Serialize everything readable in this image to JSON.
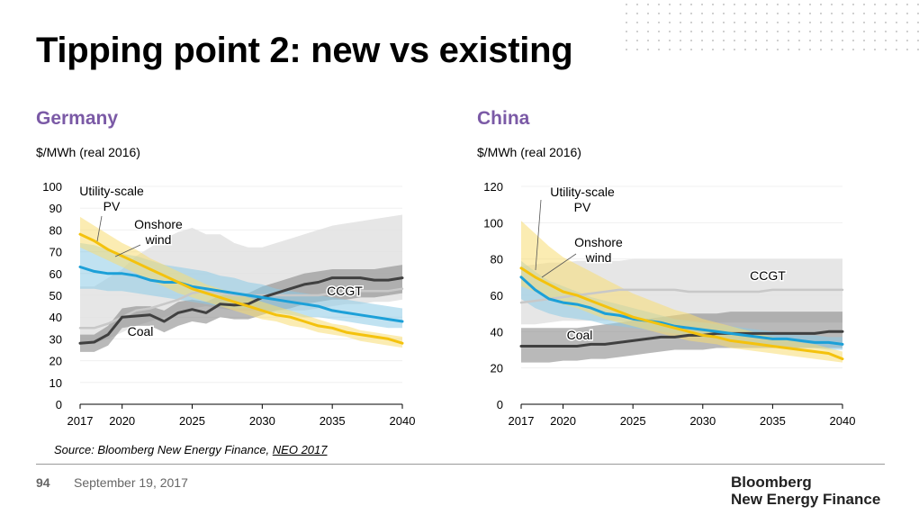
{
  "title": "Tipping point 2: new vs existing",
  "source": {
    "prefix": "Source: Bloomberg New Energy Finance, ",
    "link": "NEO 2017"
  },
  "footer": {
    "page": "94",
    "date": "September 19, 2017",
    "brand_line1": "Bloomberg",
    "brand_line2": "New Energy Finance"
  },
  "colors": {
    "pv": "#f4c20d",
    "wind": "#1ca0d8",
    "coal": "#404040",
    "ccgt": "#c8c8c8",
    "accent": "#7b5aa6"
  },
  "chart_data": [
    {
      "type": "line",
      "title": "Germany",
      "ylabel": "$/MWh (real 2016)",
      "x_ticks": [
        2017,
        2020,
        2025,
        2030,
        2035,
        2040
      ],
      "y_ticks": [
        0,
        10,
        20,
        30,
        40,
        50,
        60,
        70,
        80,
        90,
        100
      ],
      "xlim": [
        2017,
        2040
      ],
      "ylim": [
        0,
        100
      ],
      "x": [
        2017,
        2018,
        2019,
        2020,
        2021,
        2022,
        2023,
        2024,
        2025,
        2026,
        2027,
        2028,
        2029,
        2030,
        2031,
        2032,
        2033,
        2034,
        2035,
        2036,
        2037,
        2038,
        2039,
        2040
      ],
      "series": [
        {
          "name": "CCGT",
          "key": "ccgt",
          "label_lines": [
            "CCGT"
          ],
          "values": [
            35,
            35,
            37,
            40,
            43,
            44,
            46,
            48,
            51,
            52,
            51,
            50,
            50,
            50,
            50,
            50,
            50,
            50,
            51,
            51,
            52,
            52,
            52,
            53
          ],
          "low": [
            28,
            28,
            30,
            33,
            36,
            38,
            40,
            42,
            44,
            45,
            44,
            43,
            43,
            43,
            43,
            43,
            43,
            44,
            45,
            46,
            46,
            47,
            47,
            48
          ],
          "high": [
            54,
            54,
            58,
            62,
            68,
            72,
            76,
            79,
            81,
            78,
            78,
            74,
            72,
            72,
            74,
            76,
            78,
            80,
            82,
            83,
            84,
            85,
            86,
            87
          ]
        },
        {
          "name": "Coal",
          "key": "coal",
          "label_lines": [
            "Coal"
          ],
          "values": [
            28,
            28.5,
            32,
            40,
            40.5,
            41,
            38,
            42,
            43.5,
            42,
            46,
            45.5,
            46,
            49,
            51,
            53,
            55,
            56,
            58,
            58,
            58,
            57,
            57,
            58
          ],
          "low": [
            24,
            24,
            27,
            35,
            36,
            36,
            33,
            36,
            38,
            37,
            40,
            39,
            39,
            41,
            43,
            44,
            46,
            47,
            48,
            48,
            49,
            49,
            50,
            51
          ],
          "high": [
            32,
            32,
            36,
            44,
            45,
            45,
            43,
            47,
            48,
            47,
            50,
            50,
            51,
            54,
            56,
            58,
            60,
            61,
            62,
            62,
            62,
            62,
            63,
            64
          ]
        },
        {
          "name": "Onshore wind",
          "key": "wind",
          "label_lines": [
            "Onshore",
            "wind"
          ],
          "values": [
            63,
            61,
            60,
            60,
            59,
            57,
            56,
            56,
            54,
            53,
            52,
            51,
            50,
            49,
            48,
            47,
            46,
            45,
            43,
            42,
            41,
            40,
            39,
            38
          ],
          "low": [
            53,
            53,
            52,
            52,
            51,
            50,
            49,
            48,
            47,
            46,
            45,
            44,
            44,
            43,
            42,
            41,
            40,
            40,
            39,
            38,
            37,
            36,
            35,
            35
          ],
          "high": [
            74,
            73,
            71,
            69,
            68,
            66,
            64,
            63,
            62,
            61,
            59,
            58,
            56,
            55,
            53,
            52,
            51,
            50,
            49,
            48,
            47,
            46,
            45,
            44
          ]
        },
        {
          "name": "Utility-scale PV",
          "key": "pv",
          "label_lines": [
            "Utility-scale",
            "PV"
          ],
          "values": [
            78,
            75,
            71,
            68,
            65,
            62,
            59,
            56,
            53,
            51,
            49,
            47,
            45,
            43,
            41,
            40,
            38,
            36,
            35,
            33,
            32,
            31,
            30,
            28
          ],
          "low": [
            72,
            69,
            66,
            63,
            60,
            57,
            54,
            51,
            49,
            47,
            45,
            43,
            41,
            39,
            38,
            36,
            35,
            33,
            32,
            31,
            29,
            28,
            27,
            26
          ],
          "high": [
            86,
            82,
            78,
            74,
            71,
            67,
            64,
            61,
            58,
            55,
            53,
            51,
            49,
            47,
            45,
            43,
            41,
            39,
            37,
            36,
            34,
            33,
            32,
            31
          ]
        }
      ]
    },
    {
      "type": "line",
      "title": "China",
      "ylabel": "$/MWh (real 2016)",
      "x_ticks": [
        2017,
        2020,
        2025,
        2030,
        2035,
        2040
      ],
      "y_ticks": [
        0,
        20,
        40,
        60,
        80,
        100,
        120
      ],
      "xlim": [
        2017,
        2040
      ],
      "ylim": [
        0,
        120
      ],
      "x": [
        2017,
        2018,
        2019,
        2020,
        2021,
        2022,
        2023,
        2024,
        2025,
        2026,
        2027,
        2028,
        2029,
        2030,
        2031,
        2032,
        2033,
        2034,
        2035,
        2036,
        2037,
        2038,
        2039,
        2040
      ],
      "series": [
        {
          "name": "CCGT",
          "key": "ccgt",
          "label_lines": [
            "CCGT"
          ],
          "values": [
            56,
            57,
            58,
            59,
            60,
            61,
            62,
            63,
            63,
            63,
            63,
            63,
            62,
            62,
            62,
            62,
            62,
            62,
            63,
            63,
            63,
            63,
            63,
            63
          ],
          "low": [
            44,
            44,
            45,
            46,
            46,
            46,
            46,
            46,
            45,
            45,
            45,
            45,
            45,
            45,
            45,
            45,
            45,
            45,
            45,
            45,
            45,
            45,
            45,
            45
          ],
          "high": [
            76,
            77,
            78,
            78,
            79,
            79,
            79,
            79,
            80,
            80,
            80,
            80,
            80,
            80,
            80,
            80,
            80,
            80,
            80,
            80,
            80,
            80,
            80,
            80
          ]
        },
        {
          "name": "Coal",
          "key": "coal",
          "label_lines": [
            "Coal"
          ],
          "values": [
            32,
            32,
            32,
            32,
            32,
            33,
            33,
            34,
            35,
            36,
            37,
            37,
            38,
            38,
            39,
            39,
            39,
            39,
            39,
            39,
            39,
            39,
            40,
            40
          ],
          "low": [
            23,
            23,
            23,
            24,
            24,
            25,
            25,
            26,
            27,
            28,
            29,
            30,
            30,
            30,
            31,
            31,
            31,
            31,
            31,
            31,
            31,
            31,
            31,
            31
          ],
          "high": [
            42,
            42,
            42,
            42,
            42,
            43,
            44,
            45,
            46,
            47,
            48,
            49,
            50,
            50,
            50,
            51,
            51,
            51,
            51,
            51,
            51,
            51,
            51,
            51
          ]
        },
        {
          "name": "Onshore wind",
          "key": "wind",
          "label_lines": [
            "Onshore",
            "wind"
          ],
          "values": [
            70,
            63,
            58,
            56,
            55,
            53,
            50,
            49,
            47,
            46,
            45,
            43,
            42,
            41,
            40,
            39,
            38,
            37,
            36,
            36,
            35,
            34,
            34,
            33
          ],
          "low": [
            58,
            53,
            50,
            48,
            47,
            46,
            44,
            43,
            42,
            41,
            40,
            39,
            38,
            37,
            36,
            35,
            34,
            33,
            32,
            32,
            31,
            31,
            30,
            30
          ],
          "high": [
            79,
            73,
            68,
            65,
            62,
            59,
            57,
            55,
            53,
            51,
            49,
            47,
            46,
            45,
            44,
            43,
            42,
            41,
            40,
            39,
            38,
            38,
            37,
            37
          ]
        },
        {
          "name": "Utility-scale PV",
          "key": "pv",
          "label_lines": [
            "Utility-scale",
            "PV"
          ],
          "values": [
            75,
            70,
            66,
            62,
            60,
            57,
            54,
            51,
            48,
            46,
            44,
            42,
            40,
            38,
            37,
            35,
            34,
            33,
            32,
            31,
            30,
            29,
            28,
            25
          ],
          "low": [
            65,
            62,
            58,
            55,
            53,
            50,
            47,
            45,
            43,
            41,
            39,
            37,
            35,
            34,
            33,
            31,
            30,
            29,
            28,
            27,
            26,
            25,
            24,
            23
          ],
          "high": [
            101,
            94,
            87,
            81,
            77,
            73,
            69,
            65,
            61,
            58,
            55,
            52,
            50,
            47,
            45,
            43,
            41,
            39,
            37,
            36,
            34,
            33,
            31,
            29
          ]
        }
      ]
    }
  ]
}
